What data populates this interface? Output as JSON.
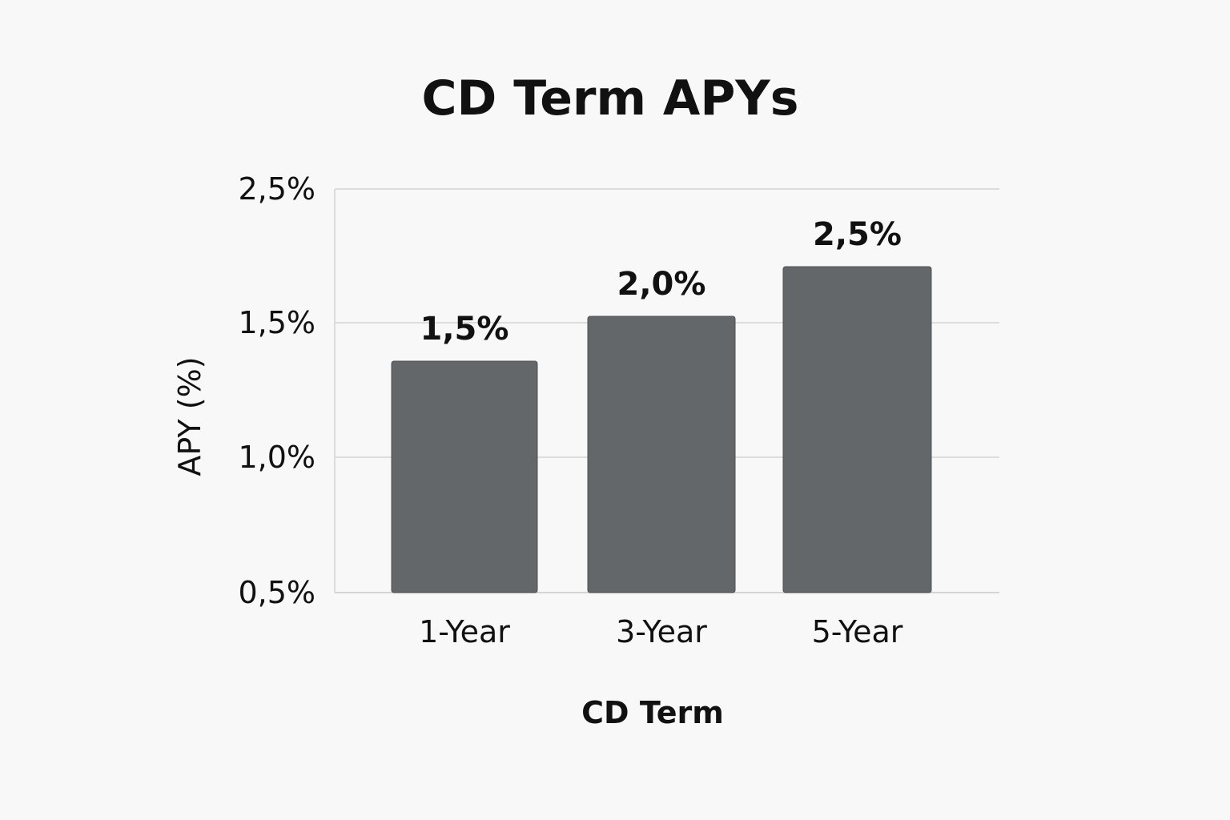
{
  "chart_data": {
    "type": "bar",
    "title": "CD Term APYs",
    "xlabel": "CD Term",
    "ylabel": "APY (%)",
    "categories": [
      "1-Year",
      "3-Year",
      "5-Year"
    ],
    "values": [
      1.5,
      2.0,
      2.5
    ],
    "data_labels": [
      "1,5%",
      "2,0%",
      "2,5%"
    ],
    "yticks": [
      0.5,
      1.0,
      1.5,
      2.5
    ],
    "ytick_labels": [
      "0,5%",
      "1,0%",
      "1,5%",
      "2,5%"
    ],
    "bar_color": "#63676a",
    "grid": true,
    "legend": false
  }
}
